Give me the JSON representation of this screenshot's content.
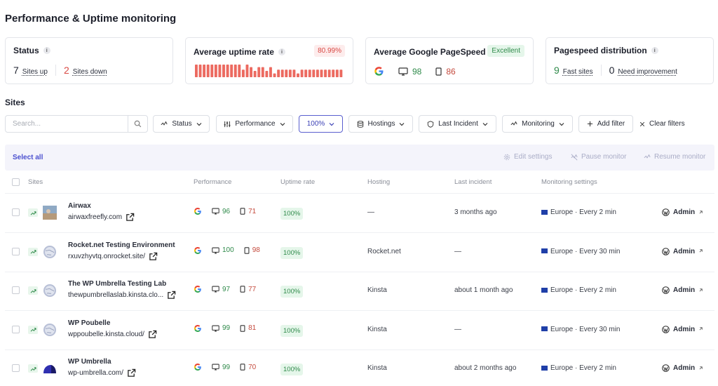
{
  "page_title": "Performance & Uptime monitoring",
  "cards": {
    "status": {
      "title": "Status",
      "up_count": "7",
      "up_label": "Sites up",
      "down_count": "2",
      "down_label": "Sites down"
    },
    "uptime": {
      "title": "Average uptime rate",
      "rate": "80.99%",
      "bar_levels": [
        1,
        1,
        1,
        1,
        1,
        1,
        1,
        1,
        1,
        1,
        1,
        1,
        0.6,
        1,
        0.8,
        0.5,
        0.8,
        0.8,
        0.5,
        0.8,
        0.3,
        0.6,
        0.6,
        0.6,
        0.6,
        0.6,
        0.3,
        0.6,
        0.6,
        0.6,
        0.6,
        0.6,
        0.6,
        0.6,
        0.6,
        0.6,
        0.6,
        0.6
      ]
    },
    "pagespeed": {
      "title": "Average Google PageSpeed",
      "badge": "Excellent",
      "desktop": "98",
      "mobile": "86"
    },
    "distribution": {
      "title": "Pagespeed distribution",
      "fast_count": "9",
      "fast_label": "Fast sites",
      "improve_count": "0",
      "improve_label": "Need improvement"
    }
  },
  "sites_section_title": "Sites",
  "search": {
    "placeholder": "Search..."
  },
  "filters": {
    "status": "Status",
    "performance": "Performance",
    "percent": "100%",
    "hostings": "Hostings",
    "last_incident": "Last Incident",
    "monitoring": "Monitoring",
    "add_filter": "Add filter",
    "clear_filters": "Clear filters"
  },
  "bulk": {
    "select_all": "Select all",
    "edit_settings": "Edit settings",
    "pause_monitor": "Pause monitor",
    "resume_monitor": "Resume monitor"
  },
  "columns": {
    "sites": "Sites",
    "performance": "Performance",
    "uptime_rate": "Uptime rate",
    "hosting": "Hosting",
    "last_incident": "Last incident",
    "monitoring_settings": "Monitoring settings"
  },
  "rows": [
    {
      "name": "Airwax",
      "url": "airwaxfreefly.com",
      "desktop": "96",
      "mobile": "71",
      "uptime": "100%",
      "hosting": "—",
      "last_incident": "3 months ago",
      "monitoring": "Europe · Every 2 min",
      "admin": "Admin",
      "avatar": "photo"
    },
    {
      "name": "Rocket.net Testing Environment",
      "url": "rxuvzhyvtq.onrocket.site/",
      "desktop": "100",
      "mobile": "98",
      "uptime": "100%",
      "hosting": "Rocket.net",
      "last_incident": "—",
      "monitoring": "Europe · Every 30 min",
      "admin": "Admin",
      "avatar": "globe"
    },
    {
      "name": "The WP Umbrella Testing Lab",
      "url": "thewpumbrellaslab.kinsta.clo...",
      "desktop": "97",
      "mobile": "77",
      "uptime": "100%",
      "hosting": "Kinsta",
      "last_incident": "about 1 month ago",
      "monitoring": "Europe · Every 2 min",
      "admin": "Admin",
      "avatar": "globe"
    },
    {
      "name": "WP Poubelle",
      "url": "wppoubelle.kinsta.cloud/",
      "desktop": "99",
      "mobile": "81",
      "uptime": "100%",
      "hosting": "Kinsta",
      "last_incident": "—",
      "monitoring": "Europe · Every 30 min",
      "admin": "Admin",
      "avatar": "globe"
    },
    {
      "name": "WP Umbrella",
      "url": "wp-umbrella.com/",
      "desktop": "99",
      "mobile": "70",
      "uptime": "100%",
      "hosting": "Kinsta",
      "last_incident": "about 2 months ago",
      "monitoring": "Europe · Every 2 min",
      "admin": "Admin",
      "avatar": "umbrella"
    }
  ],
  "colors": {
    "accent": "#4a4fcf",
    "good": "#2f8a4a",
    "bad": "#d94a45",
    "uptime_bar": "#ec6a60"
  }
}
